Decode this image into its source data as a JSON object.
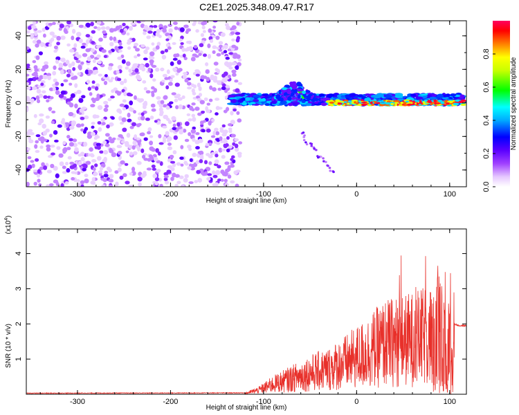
{
  "title": "C2E1.2025.348.09.47.R17",
  "chart_data": [
    {
      "type": "heatmap",
      "name": "spectrogram",
      "xlabel": "Height of straight line (km)",
      "ylabel": "Frequency (Hz)",
      "xlim": [
        -355,
        118
      ],
      "ylim": [
        -50,
        49
      ],
      "xticks": [
        -300,
        -200,
        -100,
        0,
        100
      ],
      "yticks": [
        -40,
        -20,
        0,
        20,
        40
      ],
      "colorbar": {
        "label": "Normalized spectral amplitude",
        "range": [
          0,
          1
        ],
        "ticks": [
          "0.0",
          "0.2",
          "0.4",
          "0.6",
          "0.8"
        ],
        "tick_values": [
          0.0,
          0.2,
          0.4,
          0.6,
          0.8
        ]
      },
      "features": [
        {
          "region": "noise",
          "x_range": [
            -355,
            -125
          ],
          "y_range": [
            -50,
            49
          ],
          "amplitude": 0.08
        },
        {
          "region": "band",
          "x_range": [
            -135,
            115
          ],
          "center_hz": 2,
          "halfwidth_hz": 3,
          "amplitude": 0.3
        },
        {
          "region": "hump",
          "x_range": [
            -90,
            -30
          ],
          "peak_hz": 12,
          "amplitude": 0.35
        },
        {
          "region": "descending_trace",
          "x_start": -60,
          "x_end": -25,
          "y_start": -18,
          "y_end": -42,
          "amplitude": 0.12
        },
        {
          "region": "strong_line",
          "x_range": [
            -30,
            115
          ],
          "center_hz": 0,
          "amplitude": 0.9
        }
      ]
    },
    {
      "type": "line",
      "name": "snr",
      "xlabel": "Height of straight line (km)",
      "ylabel": "SNR (10 * v/v)",
      "y_multiplier": "(x10",
      "y_multiplier_exp": "4",
      "y_multiplier_close": ")",
      "xlim": [
        -355,
        118
      ],
      "ylim": [
        0,
        4.7
      ],
      "xticks": [
        -300,
        -200,
        -100,
        0,
        100
      ],
      "yticks": [
        1,
        2,
        3,
        4
      ],
      "color": "#e8302a",
      "series": [
        {
          "name": "SNR envelope",
          "x": [
            -355,
            -120,
            -105,
            -90,
            -70,
            -50,
            -30,
            -10,
            10,
            30,
            50,
            70,
            90,
            100,
            105,
            110,
            118
          ],
          "y": [
            0.02,
            0.03,
            0.15,
            0.35,
            0.55,
            0.75,
            0.9,
            1.15,
            1.45,
            1.8,
            1.9,
            2.0,
            2.3,
            1.9,
            2.0,
            1.95,
            1.95
          ]
        }
      ]
    }
  ]
}
